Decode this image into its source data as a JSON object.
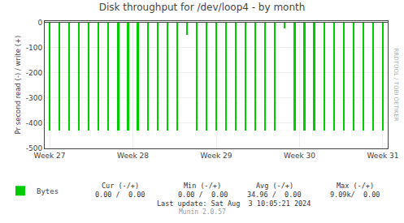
{
  "chart_data": {
    "type": "bar",
    "title": "Disk throughput for /dev/loop4 - by month",
    "ylabel": "Pr second read (-) / write (+)",
    "x": [
      0,
      1,
      2,
      3,
      4,
      5,
      6,
      7,
      8,
      9,
      10,
      11,
      12,
      13,
      14,
      15,
      16,
      17,
      18,
      19,
      20,
      21,
      22,
      23,
      24,
      25,
      26,
      27,
      28,
      29,
      30,
      31,
      32,
      33,
      34
    ],
    "series": [
      {
        "name": "Bytes",
        "color": "#00cc00",
        "values": [
          -430,
          -430,
          -430,
          -430,
          -430,
          -430,
          -430,
          -430,
          -430,
          -430,
          -430,
          -430,
          -430,
          -430,
          -50,
          -430,
          -430,
          -430,
          -430,
          -430,
          -430,
          -430,
          -430,
          -430,
          -25,
          -430,
          -430,
          -430,
          -430,
          -430,
          -430,
          -430,
          -430,
          -430,
          -430
        ]
      }
    ],
    "xlim": [
      -0.5,
      34.5
    ],
    "xticks": [
      {
        "value": 0,
        "label": "Week 27"
      },
      {
        "value": 8.5,
        "label": "Week 28"
      },
      {
        "value": 17,
        "label": "Week 29"
      },
      {
        "value": 25.5,
        "label": "Week 30"
      },
      {
        "value": 34,
        "label": "Week 31"
      }
    ],
    "ylim": [
      -500,
      5
    ],
    "yticks": [
      0,
      -100,
      -200,
      -300,
      -400,
      -500
    ],
    "grid": true,
    "legend": "lower left",
    "annotations": [
      "Cur (-/+)",
      "Min (-/+)",
      "Avg (-/+)",
      "Max (-/+)",
      "0.00 /  0.00",
      "0.00 /  0.00",
      "34.96 /  0.00",
      "9.09k/  0.00",
      "Last update: Sat Aug  3 10:05:21 2024",
      "Munin 2.0.57",
      "RRDTOOL / TOBI OETIKER"
    ]
  }
}
